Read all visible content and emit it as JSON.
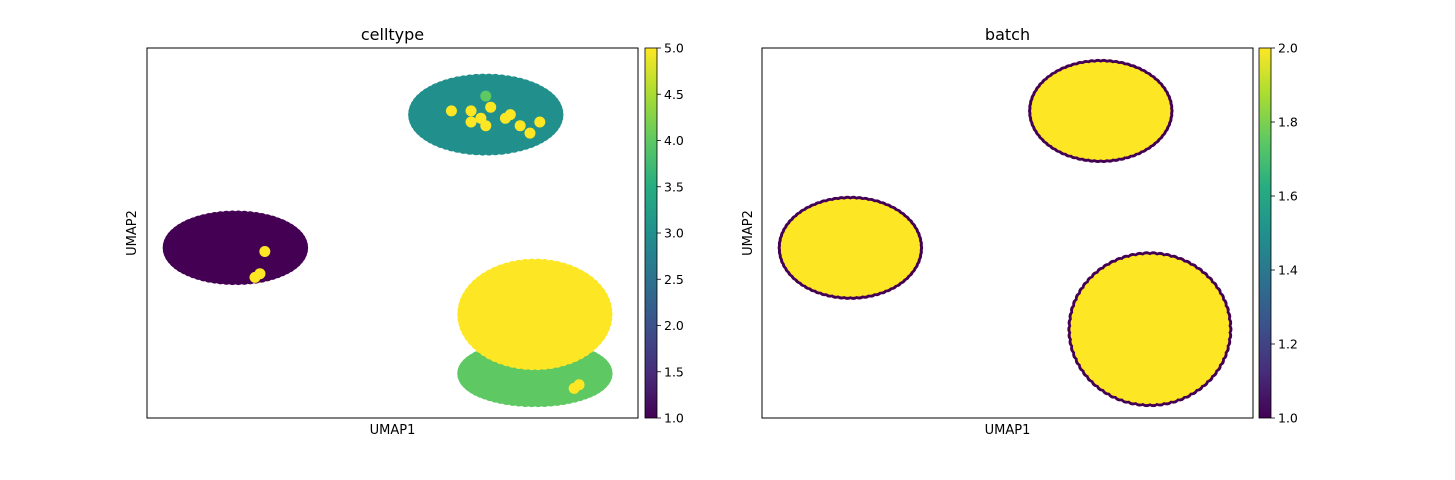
{
  "figure": {
    "panels": [
      {
        "title": "celltype",
        "xlabel": "UMAP1",
        "ylabel": "UMAP2",
        "colorbar_ticks": [
          "1.0",
          "1.5",
          "2.0",
          "2.5",
          "3.0",
          "3.5",
          "4.0",
          "4.5",
          "5.0"
        ]
      },
      {
        "title": "batch",
        "xlabel": "UMAP1",
        "ylabel": "UMAP2",
        "colorbar_ticks": [
          "1.0",
          "1.2",
          "1.4",
          "1.6",
          "1.8",
          "2.0"
        ]
      }
    ]
  },
  "chart_data": [
    {
      "type": "scatter",
      "title": "celltype",
      "xlabel": "UMAP1",
      "ylabel": "UMAP2",
      "xticks": "none",
      "yticks": "none",
      "grid": false,
      "colormap": "viridis",
      "color_range": [
        1.0,
        5.0
      ],
      "colorbar_ticks": [
        1.0,
        1.5,
        2.0,
        2.5,
        3.0,
        3.5,
        4.0,
        4.5,
        5.0
      ],
      "clusters": [
        {
          "color_value": 1.0,
          "color": "#440154",
          "center": [
            0.18,
            0.46
          ],
          "radius": [
            0.14,
            0.09
          ]
        },
        {
          "color_value": 3.0,
          "color": "#21908d",
          "center": [
            0.69,
            0.82
          ],
          "radius": [
            0.15,
            0.1
          ]
        },
        {
          "color_value": 4.0,
          "color": "#5ec962",
          "center": [
            0.79,
            0.12
          ],
          "radius": [
            0.15,
            0.08
          ]
        },
        {
          "color_value": 5.0,
          "color": "#fde725",
          "center": [
            0.79,
            0.28
          ],
          "radius": [
            0.15,
            0.14
          ]
        }
      ],
      "points": [
        {
          "x": 0.69,
          "y": 0.87,
          "value": 4.0
        },
        {
          "x": 0.62,
          "y": 0.83,
          "value": 5.0
        },
        {
          "x": 0.66,
          "y": 0.83,
          "value": 5.0
        },
        {
          "x": 0.7,
          "y": 0.84,
          "value": 5.0
        },
        {
          "x": 0.68,
          "y": 0.81,
          "value": 5.0
        },
        {
          "x": 0.66,
          "y": 0.8,
          "value": 5.0
        },
        {
          "x": 0.69,
          "y": 0.79,
          "value": 5.0
        },
        {
          "x": 0.73,
          "y": 0.81,
          "value": 5.0
        },
        {
          "x": 0.74,
          "y": 0.82,
          "value": 5.0
        },
        {
          "x": 0.76,
          "y": 0.79,
          "value": 5.0
        },
        {
          "x": 0.78,
          "y": 0.77,
          "value": 5.0
        },
        {
          "x": 0.8,
          "y": 0.8,
          "value": 5.0
        },
        {
          "x": 0.24,
          "y": 0.45,
          "value": 5.0
        },
        {
          "x": 0.23,
          "y": 0.39,
          "value": 5.0
        },
        {
          "x": 0.22,
          "y": 0.38,
          "value": 5.0
        },
        {
          "x": 0.87,
          "y": 0.08,
          "value": 5.0
        },
        {
          "x": 0.88,
          "y": 0.09,
          "value": 5.0
        }
      ]
    },
    {
      "type": "scatter",
      "title": "batch",
      "xlabel": "UMAP1",
      "ylabel": "UMAP2",
      "xticks": "none",
      "yticks": "none",
      "grid": false,
      "colormap": "viridis",
      "color_range": [
        1.0,
        2.0
      ],
      "colorbar_ticks": [
        1.0,
        1.2,
        1.4,
        1.6,
        1.8,
        2.0
      ],
      "clusters": [
        {
          "color_value": 1.0,
          "color": "#440154",
          "center": [
            0.18,
            0.46
          ],
          "radius": [
            0.14,
            0.13
          ]
        },
        {
          "color_value": 2.0,
          "color": "#fde725",
          "center": [
            0.18,
            0.46
          ],
          "radius": [
            0.14,
            0.13
          ]
        },
        {
          "color_value": 1.0,
          "color": "#440154",
          "center": [
            0.69,
            0.83
          ],
          "radius": [
            0.14,
            0.13
          ]
        },
        {
          "color_value": 2.0,
          "color": "#fde725",
          "center": [
            0.69,
            0.83
          ],
          "radius": [
            0.14,
            0.13
          ]
        },
        {
          "color_value": 1.0,
          "color": "#440154",
          "center": [
            0.79,
            0.24
          ],
          "radius": [
            0.16,
            0.2
          ]
        },
        {
          "color_value": 2.0,
          "color": "#fde725",
          "center": [
            0.79,
            0.24
          ],
          "radius": [
            0.16,
            0.2
          ]
        }
      ]
    }
  ]
}
